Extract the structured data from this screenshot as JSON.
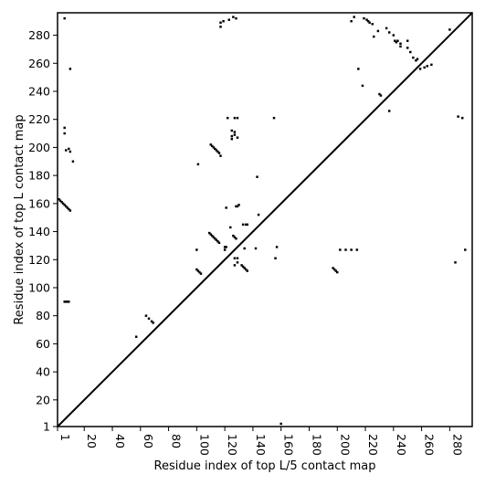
{
  "chart_data": {
    "type": "heatmap",
    "title": "",
    "xlabel": "Residue index of top L/5 contact map",
    "ylabel": "Residue index of top L contact map",
    "xlim": [
      1,
      296
    ],
    "ylim": [
      1,
      296
    ],
    "x_ticks": [
      1,
      20,
      40,
      60,
      80,
      100,
      120,
      140,
      160,
      180,
      200,
      220,
      240,
      260,
      280
    ],
    "y_ticks": [
      1,
      20,
      40,
      60,
      80,
      100,
      120,
      140,
      160,
      180,
      200,
      220,
      240,
      260,
      280
    ],
    "grid": false,
    "diagonal": "y = x",
    "contacts_top_L": [
      [
        6,
        214
      ],
      [
        6,
        210
      ],
      [
        7,
        198
      ],
      [
        9,
        199
      ],
      [
        10,
        197
      ],
      [
        12,
        190
      ],
      [
        6,
        292
      ],
      [
        10,
        256
      ],
      [
        110,
        202
      ],
      [
        111,
        201
      ],
      [
        112,
        200
      ],
      [
        113,
        199
      ],
      [
        114,
        198
      ],
      [
        115,
        197
      ],
      [
        116,
        196
      ],
      [
        117,
        194
      ],
      [
        117,
        289
      ],
      [
        117,
        286
      ],
      [
        119,
        290
      ],
      [
        123,
        291
      ],
      [
        126,
        293
      ],
      [
        128,
        292
      ],
      [
        122,
        221
      ],
      [
        127,
        221
      ],
      [
        129,
        221
      ],
      [
        125,
        212
      ],
      [
        125,
        208
      ],
      [
        127,
        211
      ],
      [
        127,
        209
      ],
      [
        129,
        207
      ],
      [
        125,
        206
      ],
      [
        2,
        163
      ],
      [
        3,
        162
      ],
      [
        4,
        161
      ],
      [
        5,
        160
      ],
      [
        6,
        159
      ],
      [
        7,
        158
      ],
      [
        8,
        157
      ],
      [
        9,
        156
      ],
      [
        10,
        155
      ],
      [
        121,
        157
      ],
      [
        128,
        158
      ],
      [
        129,
        158
      ],
      [
        130,
        159
      ],
      [
        133,
        145
      ],
      [
        135,
        145
      ],
      [
        136,
        145
      ],
      [
        143,
        179
      ],
      [
        144,
        152
      ],
      [
        109,
        139
      ],
      [
        110,
        138
      ],
      [
        111,
        137
      ],
      [
        112,
        136
      ],
      [
        113,
        135
      ],
      [
        114,
        134
      ],
      [
        115,
        133
      ],
      [
        116,
        132
      ],
      [
        120,
        129
      ],
      [
        120,
        127
      ],
      [
        121,
        129
      ],
      [
        126,
        137
      ],
      [
        127,
        136
      ],
      [
        128,
        135
      ],
      [
        124,
        143
      ],
      [
        127,
        121
      ],
      [
        129,
        121
      ],
      [
        129,
        118
      ],
      [
        127,
        116
      ],
      [
        132,
        116
      ],
      [
        133,
        115
      ],
      [
        134,
        114
      ],
      [
        135,
        113
      ],
      [
        136,
        112
      ],
      [
        100,
        113
      ],
      [
        101,
        112
      ],
      [
        102,
        111
      ],
      [
        103,
        110
      ],
      [
        100,
        127
      ],
      [
        142,
        128
      ],
      [
        134,
        128
      ],
      [
        157,
        129
      ],
      [
        156,
        121
      ],
      [
        6,
        90
      ],
      [
        7,
        90
      ],
      [
        8,
        90
      ],
      [
        9,
        90
      ],
      [
        57,
        65
      ],
      [
        64,
        80
      ],
      [
        66,
        78
      ],
      [
        68,
        76
      ],
      [
        69,
        75
      ],
      [
        101,
        188
      ],
      [
        155,
        221
      ],
      [
        160,
        3
      ],
      [
        197,
        114
      ],
      [
        198,
        113
      ],
      [
        199,
        112
      ],
      [
        200,
        111
      ],
      [
        202,
        127
      ],
      [
        206,
        127
      ],
      [
        210,
        127
      ],
      [
        214,
        127
      ],
      [
        212,
        293
      ],
      [
        210,
        290
      ],
      [
        215,
        256
      ],
      [
        218,
        244
      ],
      [
        219,
        292
      ],
      [
        221,
        291
      ],
      [
        222,
        290
      ],
      [
        223,
        289
      ],
      [
        225,
        288
      ],
      [
        226,
        279
      ],
      [
        229,
        283
      ],
      [
        230,
        238
      ],
      [
        231,
        237
      ],
      [
        235,
        285
      ],
      [
        237,
        282
      ],
      [
        240,
        280
      ],
      [
        241,
        276
      ],
      [
        242,
        275
      ],
      [
        243,
        276
      ],
      [
        245,
        274
      ],
      [
        245,
        272
      ],
      [
        250,
        276
      ],
      [
        250,
        271
      ],
      [
        252,
        268
      ],
      [
        254,
        264
      ],
      [
        256,
        262
      ],
      [
        257,
        263
      ],
      [
        259,
        256
      ],
      [
        262,
        257
      ],
      [
        264,
        258
      ],
      [
        267,
        259
      ],
      [
        237,
        226
      ],
      [
        280,
        284
      ],
      [
        284,
        118
      ],
      [
        286,
        222
      ],
      [
        289,
        221
      ],
      [
        291,
        127
      ]
    ]
  }
}
